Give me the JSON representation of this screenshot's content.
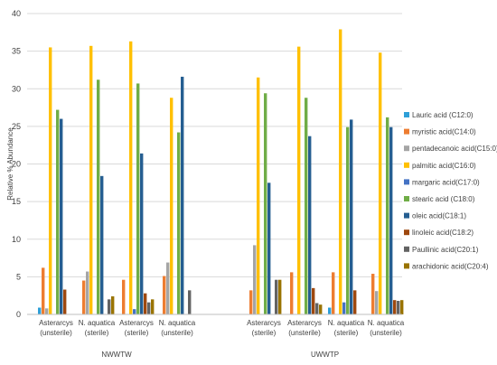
{
  "chart_data": {
    "type": "bar",
    "title": "",
    "xlabel": "",
    "ylabel": "Relative % Abundance",
    "ylim": [
      0,
      40
    ],
    "yticks": [
      0,
      5,
      10,
      15,
      20,
      25,
      30,
      35,
      40
    ],
    "grid": true,
    "legend_position": "right",
    "categories": [
      "Asterarcys (unsterile)",
      "N. aquatica (sterile)",
      "Asterarcys (sterile)",
      "N. aquatica (unsterile)",
      "Asterarcys (sterile)",
      "Asterarcys (unsterile)",
      "N. aquatica (sterile)",
      "N. aquatica (unsterile)"
    ],
    "category_lines": [
      [
        "Asterarcys",
        "(unsterile)"
      ],
      [
        "N. aquatica",
        "(sterile)"
      ],
      [
        "Asterarcys",
        "(sterile)"
      ],
      [
        "N. aquatica",
        "(unsterile)"
      ],
      [
        "Asterarcys",
        "(sterile)"
      ],
      [
        "Asterarcys",
        "(unsterile)"
      ],
      [
        "N. aquatica",
        "(sterile)"
      ],
      [
        "N. aquatica",
        "(unsterile)"
      ]
    ],
    "groups": [
      {
        "label": "NWWTW",
        "categories": [
          0,
          1,
          2,
          3
        ]
      },
      {
        "label": "UWWTP",
        "categories": [
          4,
          5,
          6,
          7
        ]
      }
    ],
    "series": [
      {
        "name": "Lauric acid (C12:0)",
        "color": "#2E9FD8",
        "values": [
          0.9,
          0,
          0,
          0,
          0,
          0,
          0.9,
          0
        ]
      },
      {
        "name": "myristic acid(C14:0)",
        "color": "#ED7D31",
        "values": [
          6.2,
          4.5,
          4.6,
          5.1,
          3.2,
          5.6,
          5.6,
          5.4
        ]
      },
      {
        "name": "pentadecanoic acid(C15:0)",
        "color": "#A5A5A5",
        "values": [
          0.8,
          5.7,
          0,
          6.9,
          9.2,
          0,
          0,
          3.1
        ]
      },
      {
        "name": "palmitic acid(C16:0)",
        "color": "#FFC000",
        "values": [
          35.5,
          35.7,
          36.3,
          28.8,
          31.5,
          35.6,
          37.9,
          34.8
        ]
      },
      {
        "name": "margaric acid(C17:0)",
        "color": "#4472C4",
        "values": [
          0,
          0,
          0.7,
          0,
          0,
          0,
          1.6,
          0
        ]
      },
      {
        "name": "stearic acid (C18:0)",
        "color": "#70AD47",
        "values": [
          27.2,
          31.2,
          30.7,
          24.2,
          29.4,
          28.8,
          24.9,
          26.2
        ]
      },
      {
        "name": "oleic acid(C18:1)",
        "color": "#255E91",
        "values": [
          26.0,
          18.4,
          21.4,
          31.6,
          17.5,
          23.7,
          25.9,
          24.9
        ]
      },
      {
        "name": "linoleic acid(C18:2)",
        "color": "#9E480E",
        "values": [
          3.3,
          0,
          2.8,
          0,
          0,
          3.5,
          3.2,
          1.9
        ]
      },
      {
        "name": "Paullinic acid(C20:1)",
        "color": "#636363",
        "values": [
          0,
          2.0,
          1.6,
          3.2,
          4.6,
          1.5,
          0,
          1.8
        ]
      },
      {
        "name": "arachidonic acid(C20:4)",
        "color": "#997300",
        "values": [
          0,
          2.4,
          2.0,
          0,
          4.6,
          1.3,
          0,
          1.9
        ]
      }
    ]
  }
}
